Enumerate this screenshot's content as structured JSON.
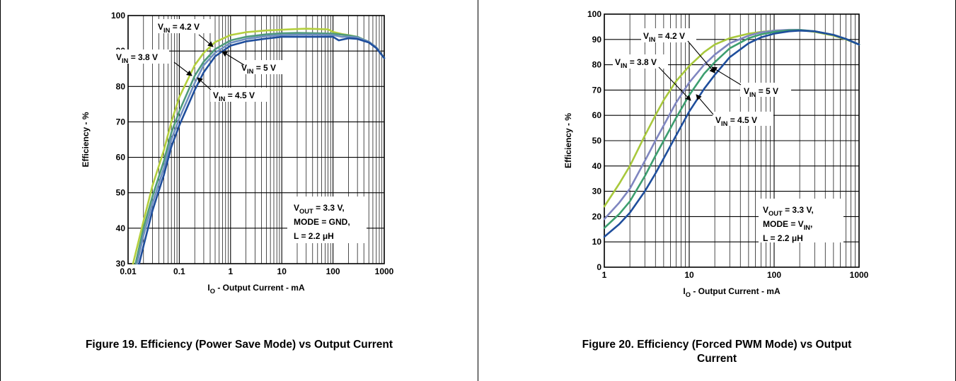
{
  "chart_data": [
    {
      "type": "line",
      "x_scale": "log",
      "xlim": [
        0.01,
        1000
      ],
      "ylim": [
        30,
        100
      ],
      "x_ticks": [
        0.01,
        0.1,
        1,
        10,
        100,
        1000
      ],
      "x_tick_labels": [
        "0.01",
        "0.1",
        "1",
        "10",
        "100",
        "1000"
      ],
      "y_ticks": [
        30,
        40,
        50,
        60,
        70,
        80,
        90,
        100
      ],
      "y_tick_labels": [
        "30",
        "40",
        "50",
        "60",
        "70",
        "80",
        "90",
        "100"
      ],
      "xlabel_main": "I",
      "xlabel_sub": "O",
      "xlabel_rest": " - Output Current - mA",
      "ylabel": "Efficiency - %",
      "grid": true,
      "series": [
        {
          "name": "VIN = 3.8 V",
          "color": "#b4cf3e",
          "x": [
            0.0125,
            0.02,
            0.03,
            0.05,
            0.07,
            0.1,
            0.2,
            0.3,
            0.5,
            1,
            2,
            5,
            10,
            20,
            30,
            50,
            80,
            100,
            150,
            200,
            300,
            500,
            700,
            1000
          ],
          "y": [
            30,
            42,
            52,
            62,
            70,
            77,
            86,
            89.5,
            92.5,
            94.5,
            95.3,
            95.8,
            96,
            96.2,
            96.3,
            96.2,
            96.1,
            95.4,
            94.8,
            94.5,
            94,
            92.6,
            91,
            88
          ]
        },
        {
          "name": "VIN = 4.2 V",
          "color": "#4e9a7b",
          "x": [
            0.014,
            0.02,
            0.03,
            0.05,
            0.07,
            0.1,
            0.2,
            0.3,
            0.5,
            1,
            2,
            5,
            10,
            20,
            50,
            100,
            150,
            200,
            300,
            500,
            700,
            1000
          ],
          "y": [
            30,
            40,
            49,
            59,
            67,
            73,
            83,
            87,
            90.5,
            93,
            94,
            94.7,
            95,
            95.1,
            95,
            94.9,
            94.6,
            94.4,
            94,
            92.6,
            91,
            88
          ]
        },
        {
          "name": "VIN = 4.5 V",
          "color": "#6f8fc0",
          "x": [
            0.015,
            0.02,
            0.03,
            0.05,
            0.07,
            0.1,
            0.2,
            0.3,
            0.5,
            1,
            2,
            5,
            10,
            20,
            50,
            100,
            150,
            200,
            300,
            500,
            700,
            1000
          ],
          "y": [
            30,
            38,
            47,
            57,
            65,
            71,
            81,
            86,
            89.5,
            92.3,
            93.4,
            94.2,
            94.5,
            94.6,
            94.6,
            94.5,
            94,
            94,
            93.8,
            92.6,
            91,
            88
          ]
        },
        {
          "name": "VIN = 5 V",
          "color": "#1f4e9c",
          "x": [
            0.0165,
            0.02,
            0.03,
            0.05,
            0.07,
            0.1,
            0.2,
            0.3,
            0.5,
            1,
            2,
            5,
            10,
            20,
            50,
            100,
            130,
            150,
            200,
            300,
            500,
            700,
            1000
          ],
          "y": [
            30,
            35,
            45,
            55,
            63,
            69,
            79,
            84,
            88.5,
            91.5,
            92.7,
            93.5,
            94,
            94,
            94,
            94,
            93,
            93.2,
            93.6,
            93.4,
            92.4,
            90.8,
            88
          ]
        }
      ],
      "annotations": [
        {
          "main": "V",
          "sub": "IN",
          "rest": " = 4.2 V"
        },
        {
          "main": "V",
          "sub": "IN",
          "rest": " = 3.8 V"
        },
        {
          "main": "V",
          "sub": "IN",
          "rest": " = 5 V"
        },
        {
          "main": "V",
          "sub": "IN",
          "rest": " = 4.5 V"
        }
      ],
      "condition_box": [
        {
          "main": "V",
          "sub": "OUT",
          "rest": " = 3.3 V,"
        },
        {
          "main": "MODE = GND,",
          "sub": "",
          "rest": ""
        },
        {
          "main": "L = 2.2 ",
          "sub": "",
          "rest": "μH"
        }
      ],
      "caption": "Figure 19. Efficiency (Power Save Mode) vs Output Current"
    },
    {
      "type": "line",
      "x_scale": "log",
      "xlim": [
        1,
        1000
      ],
      "ylim": [
        0,
        100
      ],
      "x_ticks": [
        1,
        10,
        100,
        1000
      ],
      "x_tick_labels": [
        "1",
        "10",
        "100",
        "1000"
      ],
      "y_ticks": [
        0,
        10,
        20,
        30,
        40,
        50,
        60,
        70,
        80,
        90,
        100
      ],
      "y_tick_labels": [
        "0",
        "10",
        "20",
        "30",
        "40",
        "50",
        "60",
        "70",
        "80",
        "90",
        "100"
      ],
      "xlabel_main": "I",
      "xlabel_sub": "O",
      "xlabel_rest": " - Output Current - mA",
      "ylabel": "Efficiency - %",
      "grid": true,
      "series": [
        {
          "name": "VIN = 3.8 V",
          "color": "#a8c83c",
          "x": [
            1,
            1.5,
            2,
            3,
            4,
            5,
            7,
            10,
            15,
            20,
            30,
            50,
            70,
            100,
            150,
            200,
            300,
            500,
            700,
            1000
          ],
          "y": [
            24,
            33,
            40,
            52,
            60,
            66,
            73.5,
            79.5,
            85,
            88,
            90.5,
            92.3,
            93,
            93.5,
            93.7,
            93.7,
            93,
            91.5,
            90,
            88
          ]
        },
        {
          "name": "VIN = 4.2 V",
          "color": "#7f86c0",
          "x": [
            1,
            1.5,
            2,
            3,
            4,
            5,
            7,
            10,
            15,
            20,
            30,
            50,
            70,
            100,
            150,
            200,
            300,
            500,
            700,
            1000
          ],
          "y": [
            19,
            25.5,
            31,
            42,
            50,
            56,
            65,
            73,
            80,
            84,
            88.5,
            91.5,
            92.8,
            93.5,
            93.8,
            93.8,
            93.2,
            91.8,
            90.2,
            88
          ]
        },
        {
          "name": "VIN = 4.5 V",
          "color": "#3d9e6f",
          "x": [
            1,
            1.5,
            2,
            3,
            4,
            5,
            7,
            10,
            15,
            20,
            30,
            50,
            70,
            100,
            150,
            200,
            300,
            500,
            700,
            1000
          ],
          "y": [
            15.5,
            21,
            26,
            36,
            44,
            50,
            59,
            68,
            76.5,
            81,
            86.5,
            90.5,
            92,
            93,
            93.6,
            93.7,
            93.2,
            91.8,
            90.2,
            88
          ]
        },
        {
          "name": "VIN = 5 V",
          "color": "#1f4e9c",
          "x": [
            1,
            1.5,
            2,
            3,
            4,
            5,
            7,
            10,
            15,
            20,
            30,
            50,
            70,
            100,
            150,
            200,
            300,
            500,
            700,
            1000
          ],
          "y": [
            12,
            17,
            21.5,
            30,
            37,
            43,
            52,
            61.5,
            70.5,
            76,
            83,
            88.5,
            90.8,
            92.3,
            93.2,
            93.5,
            93.2,
            91.8,
            90.2,
            88
          ]
        }
      ],
      "annotations": [
        {
          "main": "V",
          "sub": "IN",
          "rest": " = 4.2 V"
        },
        {
          "main": "V",
          "sub": "IN",
          "rest": " = 3.8 V"
        },
        {
          "main": "V",
          "sub": "IN",
          "rest": " = 5 V"
        },
        {
          "main": "V",
          "sub": "IN",
          "rest": " = 4.5 V"
        }
      ],
      "condition_box": [
        {
          "main": "V",
          "sub": "OUT",
          "rest": " = 3.3 V,"
        },
        {
          "main": "MODE = V",
          "sub": "IN",
          "rest": ","
        },
        {
          "main": "L = 2.2 ",
          "sub": "",
          "rest": "μH"
        }
      ],
      "caption": "Figure 20. Efficiency (Forced PWM Mode) vs Output Current"
    }
  ]
}
